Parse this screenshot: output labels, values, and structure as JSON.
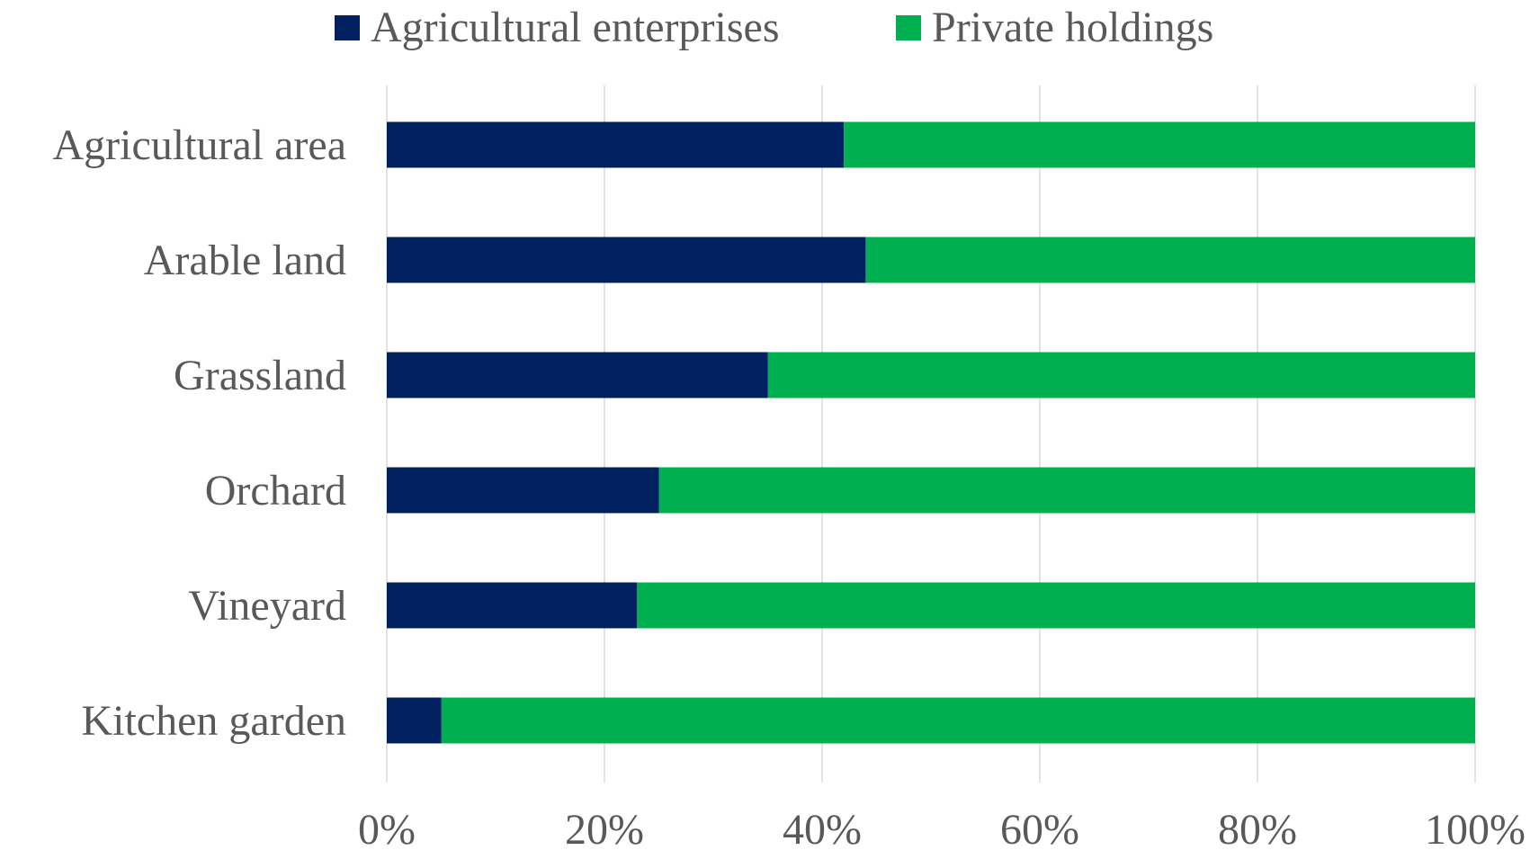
{
  "chart_data": {
    "type": "bar",
    "orientation": "horizontal",
    "stacked": "percent",
    "categories": [
      "Agricultural area",
      "Arable land",
      "Grassland",
      "Orchard",
      "Vineyard",
      "Kitchen garden"
    ],
    "series": [
      {
        "name": "Agricultural enterprises",
        "color": "#002060",
        "values": [
          42,
          44,
          35,
          25,
          23,
          5
        ]
      },
      {
        "name": "Private holdings",
        "color": "#00B050",
        "values": [
          58,
          56,
          65,
          75,
          77,
          95
        ]
      }
    ],
    "xlim": [
      0,
      100
    ],
    "xticks": [
      "0%",
      "20%",
      "40%",
      "60%",
      "80%",
      "100%"
    ],
    "grid": "vertical",
    "legend_position": "top"
  }
}
